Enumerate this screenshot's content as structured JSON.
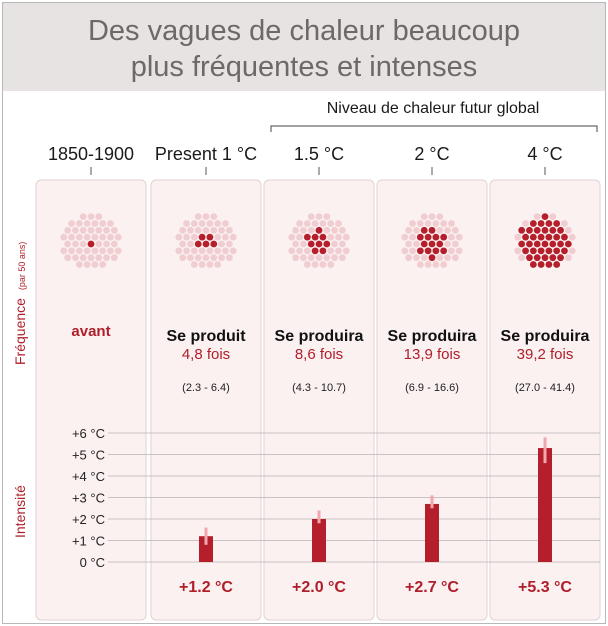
{
  "title": [
    "Des vagues de chaleur beaucoup",
    "plus fréquentes et intenses"
  ],
  "super_header": "Niveau de chaleur futur global",
  "row_labels": {
    "frequency": "Fréquence",
    "frequency_unit": "(par 50 ans)",
    "intensity": "Intensité"
  },
  "colors": {
    "accent": "#b01e2a",
    "dot_light": "#f0cdd0",
    "dot_dark": "#b51f2c",
    "card_bg": "#fbf1f1",
    "title_bg": "#e6e3e2",
    "error_bar": "#f1a7ae"
  },
  "chart_data": {
    "type": "bar",
    "categories": [
      "1850-1900",
      "Present 1 °C",
      "1.5 °C",
      "2 °C",
      "4 °C"
    ],
    "frequency_text": [
      "",
      "Se produit",
      "Se produira",
      "Se produira",
      "Se produira"
    ],
    "frequency_before": "avant",
    "frequency_multiplier": [
      null,
      4.8,
      8.6,
      13.9,
      39.2
    ],
    "frequency_multiplier_labels": [
      "",
      "4,8 fois",
      "8,6 fois",
      "13,9 fois",
      "39,2 fois"
    ],
    "frequency_range_labels": [
      "",
      "(2.3 - 6.4)",
      "(4.3 - 10.7)",
      "(6.9 - 16.6)",
      "(27.0 - 41.4)"
    ],
    "dots_total": 50,
    "dots_highlighted": [
      1,
      5,
      9,
      14,
      39
    ],
    "intensity_values": [
      0,
      1.2,
      2.0,
      2.7,
      5.3
    ],
    "intensity_ranges": [
      null,
      [
        0.8,
        1.6
      ],
      [
        1.8,
        2.4
      ],
      [
        2.5,
        3.1
      ],
      [
        4.6,
        5.8
      ]
    ],
    "intensity_labels": [
      "",
      "+1.2 °C",
      "+2.0 °C",
      "+2.7 °C",
      "+5.3 °C"
    ],
    "y_ticks": [
      "0 °C",
      "+1 °C",
      "+2 °C",
      "+3 °C",
      "+4 °C",
      "+5 °C",
      "+6 °C"
    ],
    "ylim": [
      0,
      6
    ],
    "grid": true
  }
}
